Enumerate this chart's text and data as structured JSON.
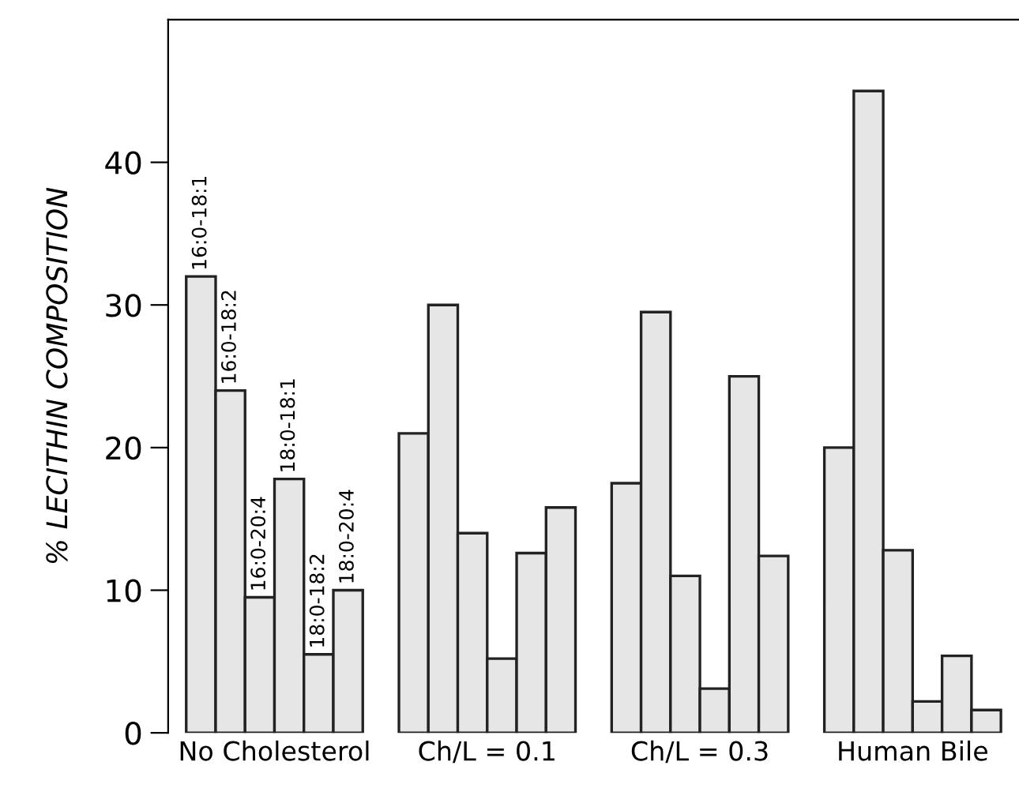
{
  "chart_data": {
    "type": "bar",
    "ylabel": "% LECITHIN COMPOSITION",
    "categories": [
      "No Cholesterol",
      "Ch/L = 0.1",
      "Ch/L = 0.3",
      "Human Bile"
    ],
    "ylim": [
      0,
      50
    ],
    "yticks": [
      0,
      10,
      20,
      30,
      40
    ],
    "grid": false,
    "series": [
      {
        "name": "16:0-18:1",
        "color": "#e6e6e6",
        "values": [
          32,
          21,
          17.5,
          20
        ]
      },
      {
        "name": "16:0-18:2",
        "color": "#e6e6e6",
        "values": [
          24,
          30,
          29.5,
          45
        ]
      },
      {
        "name": "16:0-20:4",
        "color": "#e6e6e6",
        "values": [
          9.5,
          14,
          11,
          12.8
        ]
      },
      {
        "name": "18:0-18:1",
        "color": "#e6e6e6",
        "values": [
          17.8,
          5.2,
          3.1,
          2.2
        ]
      },
      {
        "name": "18:0-18:2",
        "color": "#e6e6e6",
        "values": [
          5.5,
          12.6,
          25,
          5.4
        ]
      },
      {
        "name": "18:0-20:4",
        "color": "#e6e6e6",
        "values": [
          10,
          15.8,
          12.4,
          1.6
        ]
      }
    ]
  }
}
